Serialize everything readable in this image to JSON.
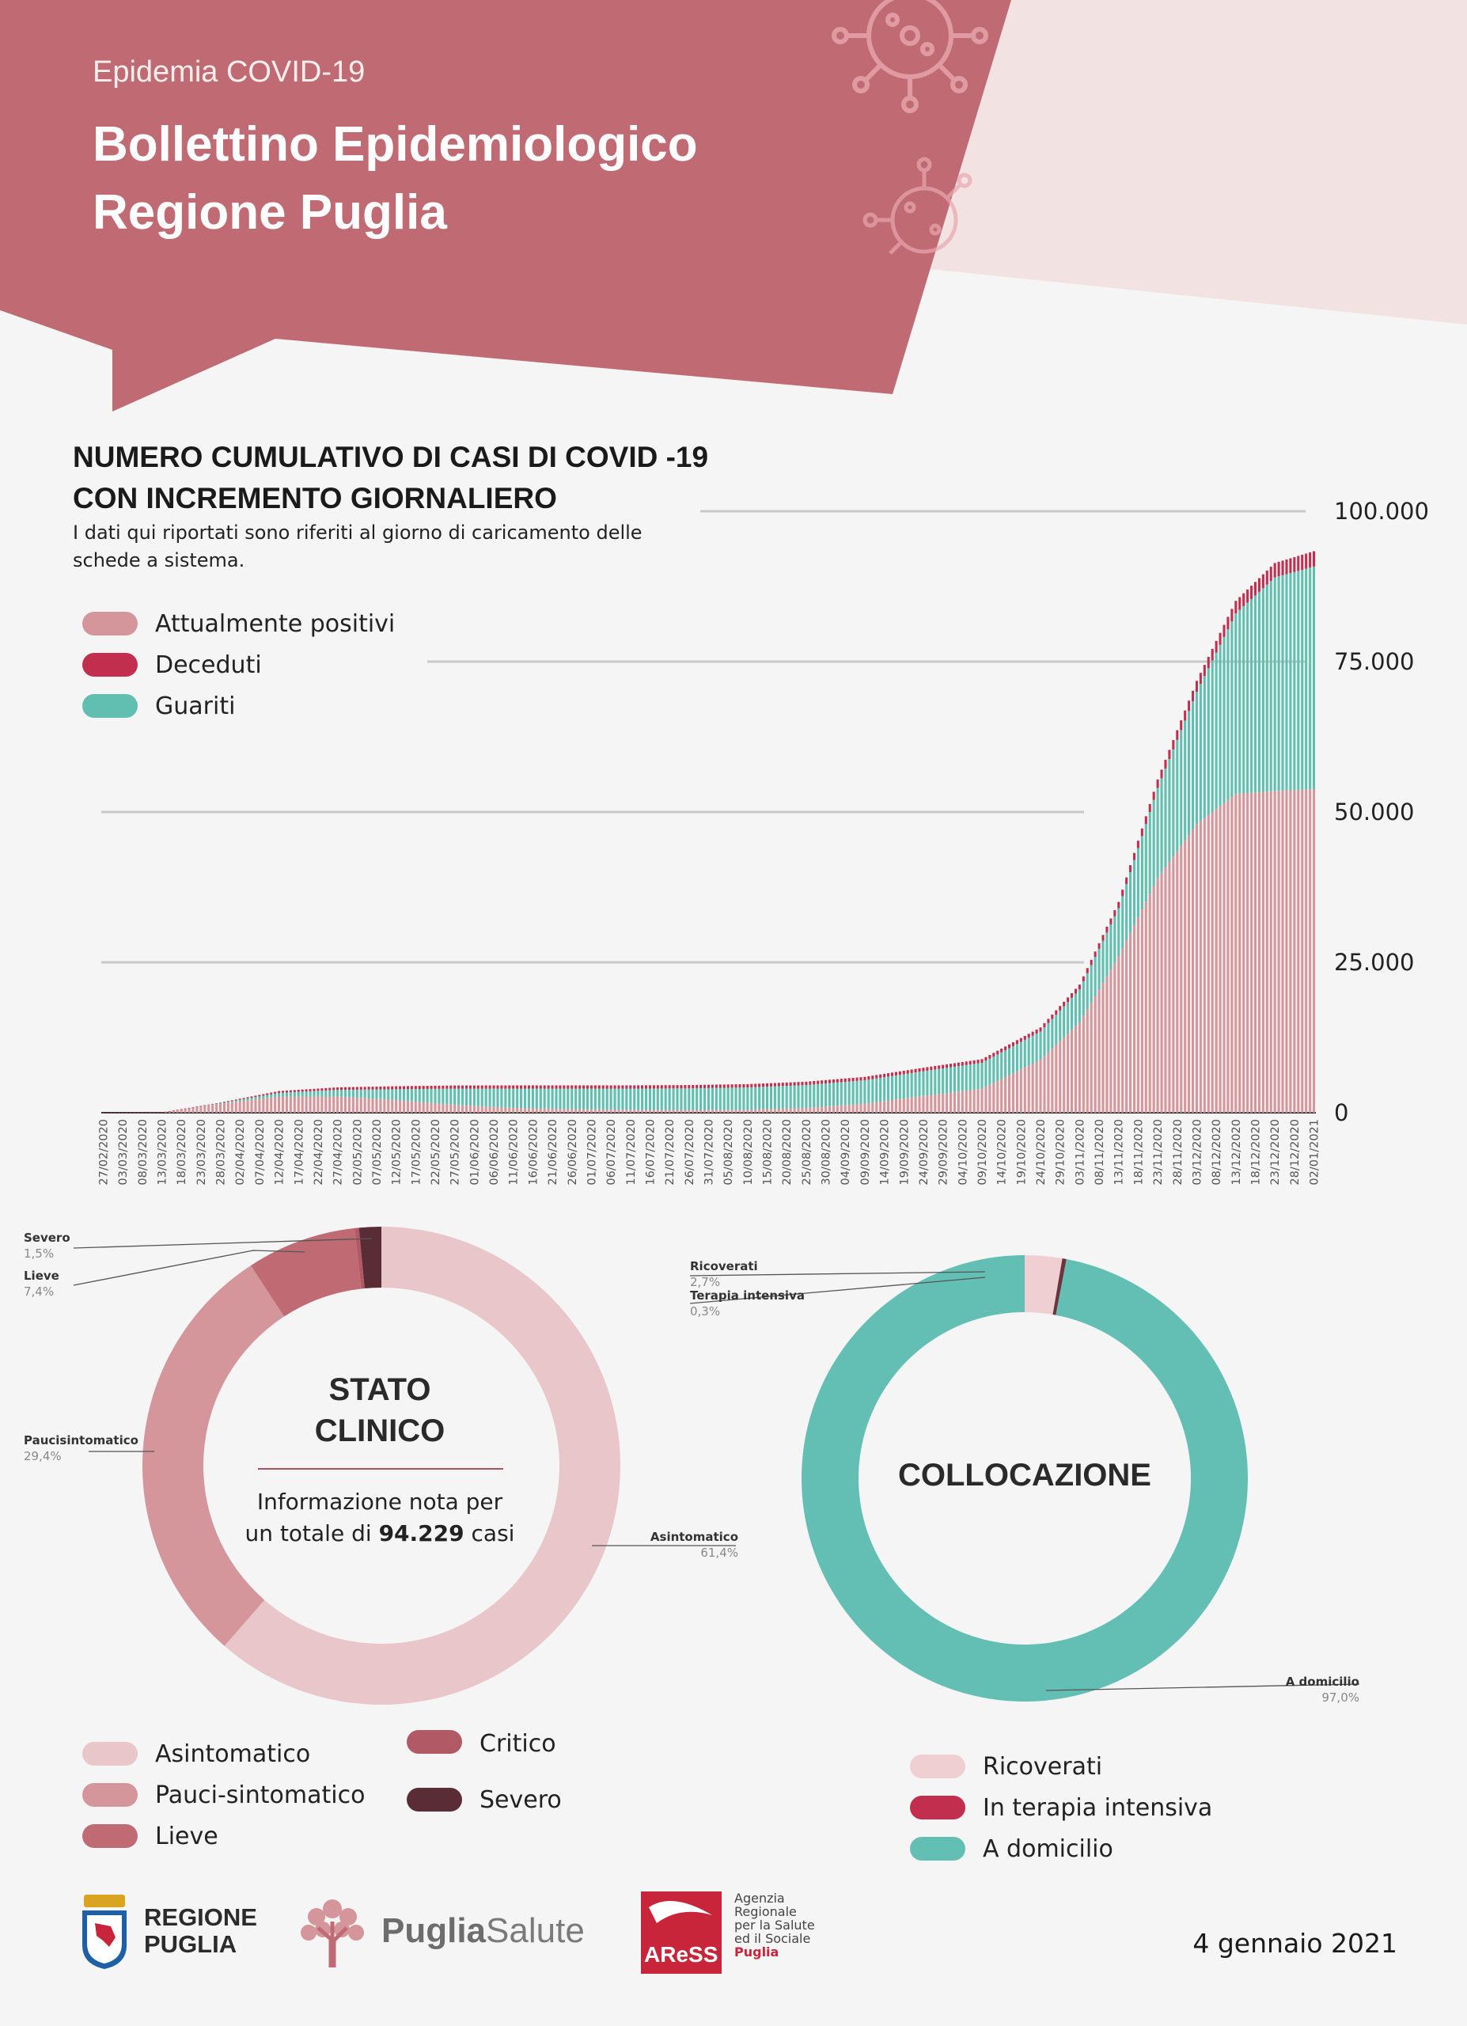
{
  "header": {
    "supertitle": "Epidemia COVID-19",
    "title_line1": "Bollettino Epidemiologico",
    "title_line2": "Regione Puglia",
    "colors": {
      "band": "#c06b74",
      "light": "#f3e2e2"
    }
  },
  "cumulative_chart": {
    "title_line1": "NUMERO CUMULATIVO DI CASI DI COVID -19",
    "title_line2": "CON INCREMENTO GIORNALIERO",
    "subtitle": "I dati qui riportati sono riferiti al giorno di caricamento delle schede a sistema."
  },
  "stato_clinico": {
    "title_line1": "STATO",
    "title_line2": "CLINICO",
    "info_prefix": "Informazione nota per",
    "info_mid": "un totale di",
    "info_total": "94.229",
    "info_suffix": "casi"
  },
  "collocazione": {
    "title": "COLLOCAZIONE"
  },
  "footer": {
    "region_line1": "REGIONE",
    "region_line2": "PUGLIA",
    "puglia_salute_bold": "Puglia",
    "puglia_salute_light": "Salute",
    "aress_short": "AReSS",
    "aress_line1": "Agenzia",
    "aress_line2": "Regionale",
    "aress_line3": "per la Salute",
    "aress_line4": "ed il Sociale",
    "aress_line5": "Puglia",
    "date": "4 gennaio 2021"
  },
  "chart_data": [
    {
      "type": "bar",
      "stacked": true,
      "yticks": [
        "0",
        "25.000",
        "50.000",
        "75.000",
        "100.000"
      ],
      "ylim": [
        0,
        100000
      ],
      "grid": true,
      "legend_position": "top-left",
      "tick_labels": [
        "27/02/2020",
        "03/03/2020",
        "08/03/2020",
        "13/03/2020",
        "18/03/2020",
        "23/03/2020",
        "28/03/2020",
        "02/04/2020",
        "07/04/2020",
        "12/04/2020",
        "17/04/2020",
        "22/04/2020",
        "27/04/2020",
        "02/05/2020",
        "07/05/2020",
        "12/05/2020",
        "17/05/2020",
        "22/05/2020",
        "27/05/2020",
        "01/06/2020",
        "06/06/2020",
        "11/06/2020",
        "16/06/2020",
        "21/06/2020",
        "26/06/2020",
        "01/07/2020",
        "06/07/2020",
        "11/07/2020",
        "16/07/2020",
        "21/07/2020",
        "26/07/2020",
        "31/07/2020",
        "05/08/2020",
        "10/08/2020",
        "15/08/2020",
        "20/08/2020",
        "25/08/2020",
        "30/08/2020",
        "04/09/2020",
        "09/09/2020",
        "14/09/2020",
        "19/09/2020",
        "24/09/2020",
        "29/09/2020",
        "04/10/2020",
        "09/10/2020",
        "14/10/2020",
        "19/10/2020",
        "24/10/2020",
        "29/10/2020",
        "03/11/2020",
        "08/11/2020",
        "13/11/2020",
        "18/11/2020",
        "23/11/2020",
        "28/11/2020",
        "03/12/2020",
        "08/12/2020",
        "13/12/2020",
        "18/12/2020",
        "23/12/2020",
        "28/12/2020",
        "02/01/2021"
      ],
      "legend": [
        {
          "name": "Attualmente positivi",
          "color": "#d4959b"
        },
        {
          "name": "Deceduti",
          "color": "#c22e4e"
        },
        {
          "name": "Guariti",
          "color": "#60bfb0"
        }
      ],
      "series_sample": {
        "x": [
          "27/02/2020",
          "13/03/2020",
          "28/03/2020",
          "12/04/2020",
          "27/04/2020",
          "12/05/2020",
          "27/05/2020",
          "11/06/2020",
          "26/06/2020",
          "11/07/2020",
          "26/07/2020",
          "10/08/2020",
          "25/08/2020",
          "09/09/2020",
          "24/09/2020",
          "09/10/2020",
          "24/10/2020",
          "03/11/2020",
          "13/11/2020",
          "23/11/2020",
          "03/12/2020",
          "13/12/2020",
          "23/12/2020",
          "02/01/2021"
        ],
        "attualmente_positivi": [
          0,
          50,
          1500,
          2700,
          2700,
          2100,
          1300,
          800,
          600,
          500,
          450,
          500,
          800,
          1500,
          2800,
          4000,
          8800,
          15000,
          26000,
          39000,
          48000,
          53000,
          53500,
          53800
        ],
        "deceduti": [
          0,
          5,
          90,
          300,
          420,
          500,
          530,
          540,
          545,
          548,
          550,
          552,
          555,
          565,
          580,
          600,
          680,
          800,
          1050,
          1400,
          1800,
          2100,
          2400,
          2550
        ],
        "guariti": [
          0,
          0,
          100,
          600,
          1100,
          1800,
          2700,
          3200,
          3400,
          3500,
          3600,
          3700,
          3800,
          3900,
          4100,
          4300,
          4700,
          5500,
          8000,
          15000,
          22000,
          30000,
          35500,
          37000
        ]
      }
    },
    {
      "type": "pie",
      "variant": "donut",
      "name": "Stato clinico",
      "slices": [
        {
          "label": "Asintomatico",
          "value": 61.4,
          "pct_label": "61,4%",
          "color": "#e9c6c9"
        },
        {
          "label": "Paucisintomatico",
          "value": 29.4,
          "pct_label": "29,4%",
          "color": "#d4959b"
        },
        {
          "label": "Lieve",
          "value": 7.4,
          "pct_label": "7,4%",
          "color": "#c06b74"
        },
        {
          "label": "Critico",
          "value": 0.3,
          "pct_label": "",
          "color": "#b15a66"
        },
        {
          "label": "Severo",
          "value": 1.5,
          "pct_label": "1,5%",
          "color": "#5a2c36"
        }
      ],
      "legend": [
        "Asintomatico",
        "Pauci-sintomatico",
        "Lieve",
        "Critico",
        "Severo"
      ]
    },
    {
      "type": "pie",
      "variant": "donut",
      "name": "Collocazione",
      "slices": [
        {
          "label": "Ricoverati",
          "value": 2.7,
          "pct_label": "2,7%",
          "color": "#f0cfd2"
        },
        {
          "label": "Terapia intensiva",
          "value": 0.3,
          "pct_label": "0,3%",
          "color": "#6b3440"
        },
        {
          "label": "A domicilio",
          "value": 97.0,
          "pct_label": "97,0%",
          "color": "#63bfb3"
        }
      ],
      "legend": [
        "Ricoverati",
        "In terapia intensiva",
        "A domicilio"
      ],
      "legend_colors": [
        "#f0cfd2",
        "#c22e4e",
        "#63bfb3"
      ]
    }
  ]
}
